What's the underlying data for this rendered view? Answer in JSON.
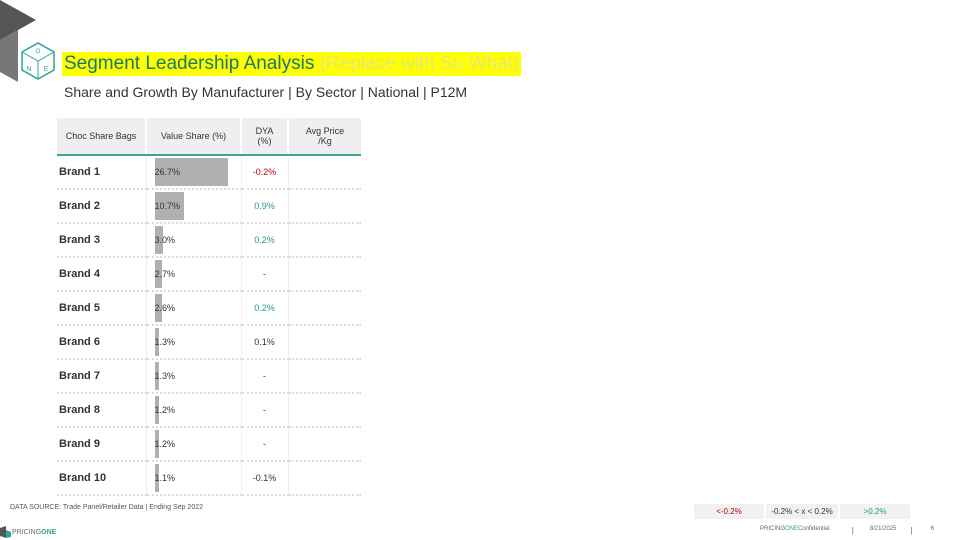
{
  "header": {
    "title": "Segment Leadership Analysis",
    "title_note": "(Replace with So What)",
    "subtitle": "Share and Growth By Manufacturer | By Sector | National | P12M",
    "logo_letters": [
      "O",
      "N",
      "E"
    ]
  },
  "table": {
    "headers": {
      "brand": "Choc Share Bags",
      "share": "Value Share (%)",
      "dya_line1": "DYA",
      "dya_line2": "(%)",
      "price_line1": "Avg Price",
      "price_line2": "/Kg"
    },
    "share_max": 26.7,
    "rows": [
      {
        "brand": "Brand 1",
        "share": 26.7,
        "share_label": "26.7%",
        "dya": "-0.2%",
        "dya_status": "neg",
        "price": ""
      },
      {
        "brand": "Brand 2",
        "share": 10.7,
        "share_label": "10.7%",
        "dya": "0.9%",
        "dya_status": "pos",
        "price": ""
      },
      {
        "brand": "Brand 3",
        "share": 3.0,
        "share_label": "3.0%",
        "dya": "0.2%",
        "dya_status": "pos",
        "price": ""
      },
      {
        "brand": "Brand 4",
        "share": 2.7,
        "share_label": "2.7%",
        "dya": "-",
        "dya_status": "flat",
        "price": ""
      },
      {
        "brand": "Brand 5",
        "share": 2.6,
        "share_label": "2.6%",
        "dya": "0.2%",
        "dya_status": "pos",
        "price": ""
      },
      {
        "brand": "Brand 6",
        "share": 1.3,
        "share_label": "1.3%",
        "dya": "0.1%",
        "dya_status": "flat",
        "price": ""
      },
      {
        "brand": "Brand 7",
        "share": 1.3,
        "share_label": "1.3%",
        "dya": "-",
        "dya_status": "flat",
        "price": ""
      },
      {
        "brand": "Brand 8",
        "share": 1.2,
        "share_label": "1.2%",
        "dya": "-",
        "dya_status": "flat",
        "price": ""
      },
      {
        "brand": "Brand 9",
        "share": 1.2,
        "share_label": "1.2%",
        "dya": "-",
        "dya_status": "flat",
        "price": ""
      },
      {
        "brand": "Brand 10",
        "share": 1.1,
        "share_label": "1.1%",
        "dya": "-0.1%",
        "dya_status": "flat",
        "price": ""
      }
    ]
  },
  "source": "DATA SOURCE: Trade Panel/Retailer Data | Ending Sep 2022",
  "legend": {
    "neg": "<-0.2%",
    "mid": "-0.2% < x < 0.2%",
    "pos": ">0.2%"
  },
  "footer": {
    "brand_prefix": "PRICING",
    "brand_suffix": "ONE",
    "confidential_prefix": "PRICING",
    "confidential_mid": "ONE",
    "confidential_suffix": " Confidential",
    "separator": "|",
    "date": "8/21/2025",
    "page": "6"
  },
  "colors": {
    "accent": "#1a7a6a",
    "highlight": "#ffff00",
    "bar": "#b0b0b0",
    "negative": "#c00000",
    "positive": "#1a9a8a",
    "header_rule": "#3aa597"
  }
}
